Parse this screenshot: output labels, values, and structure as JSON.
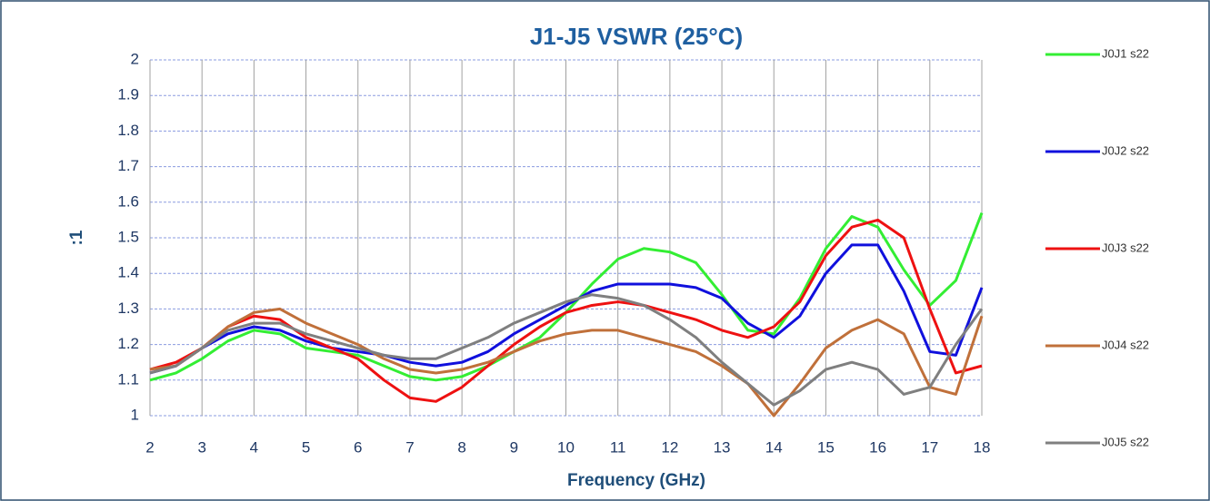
{
  "chart_data": {
    "type": "line",
    "title": "J1-J5 VSWR (25°C)",
    "x_label": "Frequency (GHz)",
    "y_label": ":1",
    "x": [
      2,
      2.5,
      3,
      3.5,
      4,
      4.5,
      5,
      5.5,
      6,
      6.5,
      7,
      7.5,
      8,
      8.5,
      9,
      9.5,
      10,
      10.5,
      11,
      11.5,
      12,
      12.5,
      13,
      13.5,
      14,
      14.5,
      15,
      15.5,
      16,
      16.5,
      17,
      17.5,
      18
    ],
    "series": [
      {
        "name": "J0J1 s22",
        "color": "#33ee33",
        "values": [
          1.1,
          1.12,
          1.16,
          1.21,
          1.24,
          1.23,
          1.19,
          1.18,
          1.17,
          1.14,
          1.11,
          1.1,
          1.11,
          1.14,
          1.18,
          1.22,
          1.29,
          1.37,
          1.44,
          1.47,
          1.46,
          1.43,
          1.34,
          1.24,
          1.23,
          1.33,
          1.47,
          1.56,
          1.53,
          1.41,
          1.31,
          1.38,
          1.57
        ]
      },
      {
        "name": "J0J2 s22",
        "color": "#1010dd",
        "values": [
          1.12,
          1.14,
          1.19,
          1.23,
          1.25,
          1.24,
          1.21,
          1.19,
          1.18,
          1.17,
          1.15,
          1.14,
          1.15,
          1.18,
          1.23,
          1.27,
          1.31,
          1.35,
          1.37,
          1.37,
          1.37,
          1.36,
          1.33,
          1.26,
          1.22,
          1.28,
          1.4,
          1.48,
          1.48,
          1.35,
          1.18,
          1.17,
          1.36
        ]
      },
      {
        "name": "J0J3 s22",
        "color": "#ee1111",
        "values": [
          1.13,
          1.15,
          1.19,
          1.25,
          1.28,
          1.27,
          1.22,
          1.19,
          1.16,
          1.1,
          1.05,
          1.04,
          1.08,
          1.14,
          1.2,
          1.25,
          1.29,
          1.31,
          1.32,
          1.31,
          1.29,
          1.27,
          1.24,
          1.22,
          1.25,
          1.32,
          1.45,
          1.53,
          1.55,
          1.5,
          1.3,
          1.12,
          1.14
        ]
      },
      {
        "name": "J0J4 s22",
        "color": "#c0703a",
        "values": [
          1.13,
          1.14,
          1.19,
          1.25,
          1.29,
          1.3,
          1.26,
          1.23,
          1.2,
          1.16,
          1.13,
          1.12,
          1.13,
          1.15,
          1.18,
          1.21,
          1.23,
          1.24,
          1.24,
          1.22,
          1.2,
          1.18,
          1.14,
          1.09,
          1.0,
          1.09,
          1.19,
          1.24,
          1.27,
          1.23,
          1.08,
          1.06,
          1.28
        ]
      },
      {
        "name": "J0J5 s22",
        "color": "#7f7f7f",
        "values": [
          1.12,
          1.14,
          1.19,
          1.24,
          1.26,
          1.26,
          1.23,
          1.21,
          1.19,
          1.17,
          1.16,
          1.16,
          1.19,
          1.22,
          1.26,
          1.29,
          1.32,
          1.34,
          1.33,
          1.31,
          1.27,
          1.22,
          1.15,
          1.09,
          1.03,
          1.07,
          1.13,
          1.15,
          1.13,
          1.06,
          1.08,
          1.2,
          1.3
        ]
      }
    ],
    "xlim": [
      2,
      18
    ],
    "xticks": [
      2,
      3,
      4,
      5,
      6,
      7,
      8,
      9,
      10,
      11,
      12,
      13,
      14,
      15,
      16,
      17,
      18
    ],
    "ylim": [
      1,
      2
    ],
    "yticks": [
      1,
      1.1,
      1.2,
      1.3,
      1.4,
      1.5,
      1.6,
      1.7,
      1.8,
      1.9,
      2
    ],
    "grid": true,
    "legend": "right"
  }
}
